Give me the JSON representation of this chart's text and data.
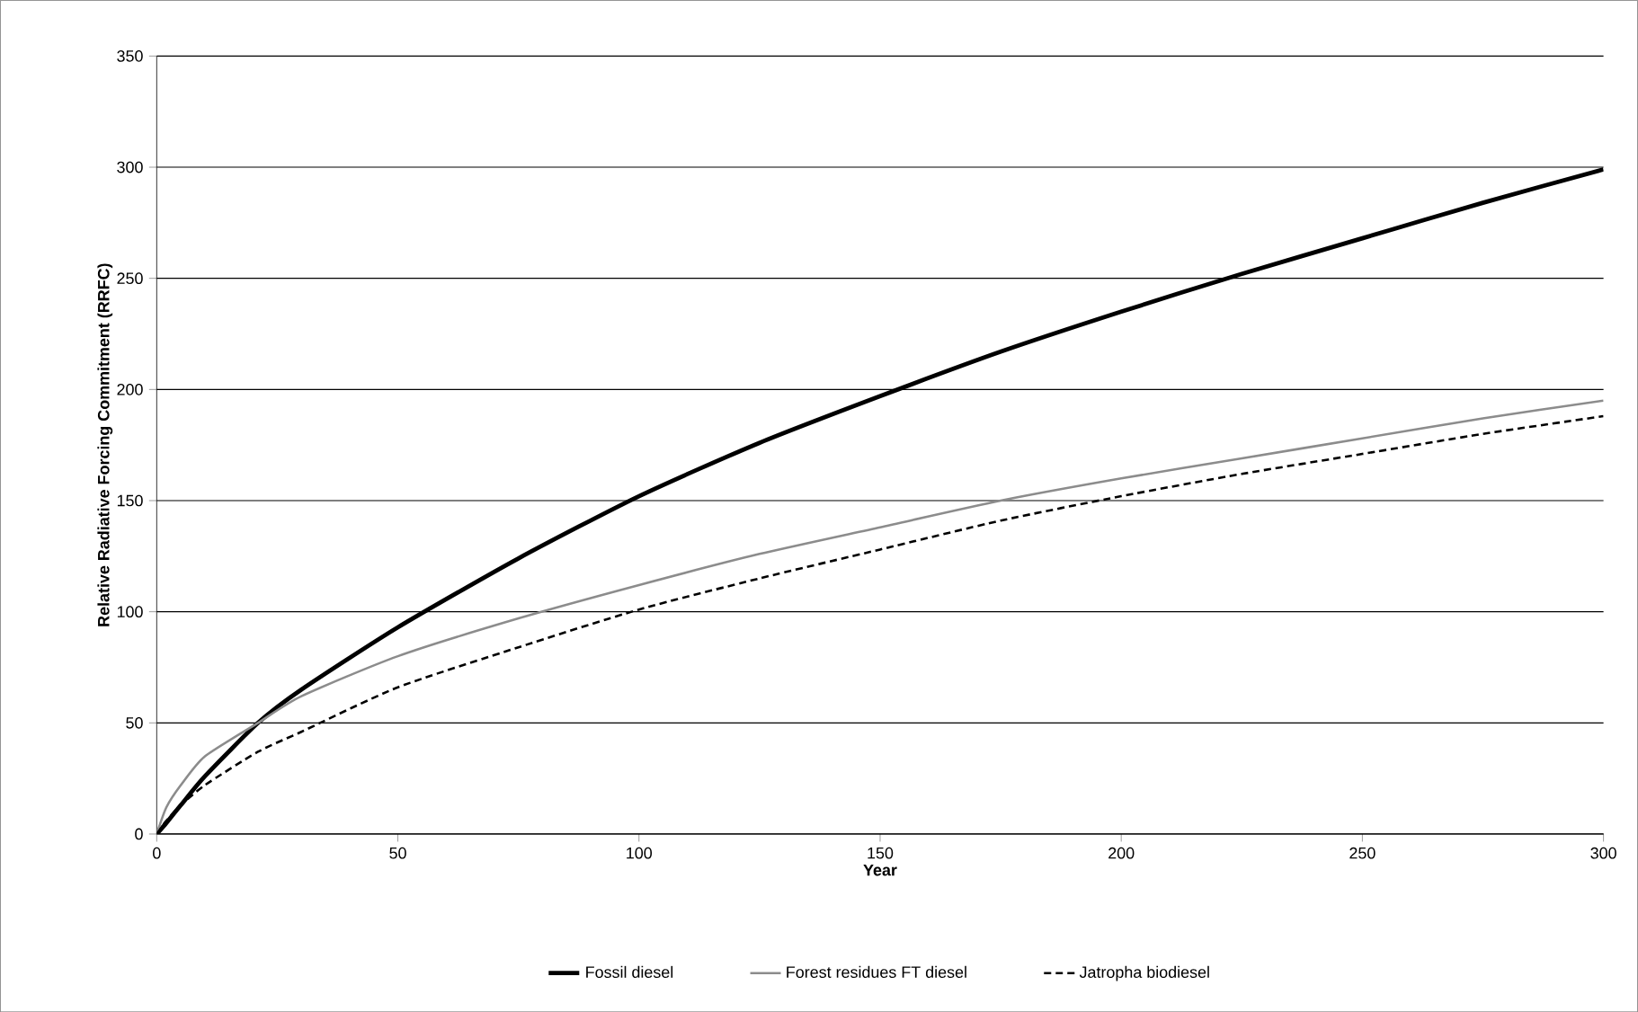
{
  "chart_data": {
    "type": "line",
    "xlabel": "Year",
    "ylabel": "Relative Radiative Forcing Commitment (RRFC)",
    "xlim": [
      0,
      300
    ],
    "ylim": [
      0,
      350
    ],
    "xticks": [
      0,
      50,
      100,
      150,
      200,
      250,
      300
    ],
    "yticks": [
      0,
      50,
      100,
      150,
      200,
      250,
      300,
      350
    ],
    "grid": "y",
    "legend": "bottom",
    "marker": "none",
    "series": [
      {
        "name": "Fossil diesel",
        "color": "#000000",
        "line_style": "solid",
        "x": [
          0,
          2,
          5,
          10,
          21,
          30,
          50,
          75,
          100,
          125,
          150,
          175,
          200,
          225,
          250,
          275,
          300
        ],
        "values": [
          0,
          5,
          13,
          26,
          50,
          65,
          93,
          124,
          152,
          176,
          197,
          217,
          235,
          252,
          268,
          284,
          299
        ]
      },
      {
        "name": "Forest residues FT diesel",
        "color": "#8c8c8c",
        "line_style": "solid",
        "x": [
          0,
          2,
          5,
          10,
          21,
          30,
          50,
          75,
          100,
          125,
          150,
          175,
          200,
          225,
          250,
          275,
          300
        ],
        "values": [
          0,
          12,
          22,
          35,
          50,
          62,
          80,
          97,
          112,
          126,
          138,
          150,
          160,
          169,
          178,
          187,
          195
        ]
      },
      {
        "name": "Jatropha biodiesel",
        "color": "#000000",
        "line_style": "dashed",
        "x": [
          0,
          2,
          5,
          10,
          21,
          30,
          50,
          75,
          100,
          125,
          150,
          175,
          200,
          225,
          250,
          275,
          300
        ],
        "values": [
          0,
          6,
          13,
          22,
          37,
          46,
          66,
          84,
          101,
          115,
          128,
          141,
          152,
          162,
          171,
          180,
          188
        ]
      }
    ]
  }
}
